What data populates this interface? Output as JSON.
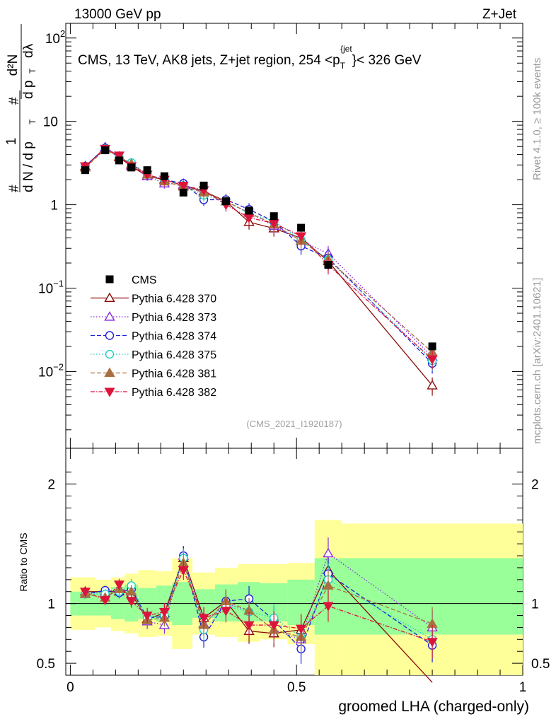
{
  "header": {
    "left": "13000 GeV pp",
    "right": "Z+Jet"
  },
  "side": {
    "rivet": "Rivet 4.1.0, ≥ 100k events",
    "mcplots": "mcplots.cern.ch [arXiv:2401.10621]"
  },
  "analysis_label": "(CMS_2021_I1920187)",
  "chart_data": [
    {
      "type": "scatter",
      "panel": "main",
      "title": "CMS, 13 TeV, AK8 jets, Z+jet region, 254 <p_T^{jet}< 326 GeV",
      "title_parts": {
        "pre": "CMS, 13 TeV, AK8 jets, Z+jet region, 254 <p",
        "sub": "T",
        "sup": "{jet",
        "post": "}< 326 GeV"
      },
      "ylabel": "1/(dN/dp_T) d²N/(dp_T dλ)",
      "ylabel_parts": {
        "hash": "#",
        "one": "1",
        "dn": "d N / d p",
        "t": "T",
        "d2n": "d²N",
        "dpdl": "d p",
        "dl": "dλ"
      },
      "xlabel": "",
      "y_scale": "log",
      "ylim": [
        0.0012,
        150
      ],
      "xlim": [
        -0.01,
        1.0
      ],
      "y_ticks": [
        {
          "v": 0.01,
          "b": "10",
          "e": "−2"
        },
        {
          "v": 0.1,
          "b": "10",
          "e": "−1"
        },
        {
          "v": 1,
          "b": "1",
          "e": ""
        },
        {
          "v": 10,
          "b": "10",
          "e": ""
        },
        {
          "v": 100,
          "b": "10",
          "e": "2"
        }
      ],
      "x": [
        0.033,
        0.077,
        0.108,
        0.135,
        0.17,
        0.208,
        0.25,
        0.295,
        0.344,
        0.395,
        0.45,
        0.51,
        0.57,
        0.8
      ],
      "data": {
        "name": "CMS",
        "values": [
          2.6,
          4.5,
          3.4,
          2.8,
          2.6,
          2.2,
          1.4,
          1.7,
          1.1,
          0.85,
          0.73,
          0.53,
          0.19,
          0.02
        ]
      },
      "series": [
        {
          "name": "Pythia 6.428 370",
          "color": "#8b0a0a",
          "marker": "tri-open",
          "dash": "",
          "values": [
            2.9,
            4.8,
            3.7,
            2.9,
            2.2,
            2.0,
            1.7,
            1.45,
            1.1,
            0.62,
            0.52,
            0.4,
            0.21,
            0.0068
          ]
        },
        {
          "name": "Pythia 6.428 373",
          "color": "#8a2be2",
          "marker": "tri-open",
          "dash": "1.5,2.5",
          "values": [
            2.8,
            4.9,
            3.8,
            3.0,
            2.2,
            1.8,
            1.75,
            1.4,
            1.1,
            0.8,
            0.56,
            0.37,
            0.26,
            0.015
          ]
        },
        {
          "name": "Pythia 6.428 374",
          "color": "#1f1fd6",
          "marker": "circle-open",
          "dash": "6,3",
          "values": [
            2.9,
            4.8,
            3.7,
            3.1,
            2.3,
            2.0,
            1.8,
            1.15,
            1.15,
            0.88,
            0.63,
            0.32,
            0.23,
            0.0125
          ]
        },
        {
          "name": "Pythia 6.428 375",
          "color": "#1fd1c0",
          "marker": "circle-open",
          "dash": "1.5,2.5",
          "values": [
            2.8,
            4.7,
            3.7,
            3.2,
            2.3,
            2.0,
            1.7,
            1.3,
            1.1,
            0.78,
            0.64,
            0.38,
            0.22,
            0.0135
          ]
        },
        {
          "name": "Pythia 6.428 381",
          "color": "#a87040",
          "marker": "tri-fill",
          "dash": "6,3",
          "values": [
            2.8,
            4.6,
            3.8,
            3.1,
            2.3,
            1.9,
            1.65,
            1.4,
            1.1,
            0.8,
            0.58,
            0.37,
            0.22,
            0.017
          ]
        },
        {
          "name": "Pythia 6.428 382",
          "color": "#dc143c",
          "marker": "tri-down",
          "dash": "6,2,1.5,2",
          "values": [
            2.9,
            4.7,
            3.9,
            2.9,
            2.3,
            2.0,
            1.7,
            1.5,
            1.0,
            0.7,
            0.6,
            0.42,
            0.19,
            0.014
          ]
        }
      ]
    },
    {
      "type": "line",
      "panel": "ratio",
      "ylabel": "Ratio to CMS",
      "xlabel": "groomed LHA (charged-only)",
      "ylim": [
        0.4,
        2.3
      ],
      "xlim": [
        -0.01,
        1.0
      ],
      "y_ticks": [
        {
          "v": 0.5,
          "label": "0.5"
        },
        {
          "v": 1,
          "label": "1"
        },
        {
          "v": 2,
          "label": "2"
        }
      ],
      "x_ticks": [
        {
          "v": 0,
          "label": "0"
        },
        {
          "v": 0.5,
          "label": "0.5"
        },
        {
          "v": 1,
          "label": "1"
        }
      ],
      "bins": [
        0.0,
        0.055,
        0.09,
        0.12,
        0.15,
        0.19,
        0.225,
        0.27,
        0.32,
        0.37,
        0.42,
        0.48,
        0.54,
        0.6,
        1.0
      ],
      "band_inner": [
        [
          0.9,
          1.1
        ],
        [
          0.9,
          1.1
        ],
        [
          0.87,
          1.14
        ],
        [
          0.85,
          1.16
        ],
        [
          0.87,
          1.13
        ],
        [
          0.85,
          1.15
        ],
        [
          0.82,
          1.18
        ],
        [
          0.88,
          1.12
        ],
        [
          0.85,
          1.16
        ],
        [
          0.85,
          1.18
        ],
        [
          0.85,
          1.17
        ],
        [
          0.82,
          1.2
        ],
        [
          0.74,
          1.38
        ],
        [
          0.74,
          1.38
        ]
      ],
      "band_outer": [
        [
          0.78,
          1.22
        ],
        [
          0.8,
          1.2
        ],
        [
          0.77,
          1.22
        ],
        [
          0.75,
          1.25
        ],
        [
          0.72,
          1.28
        ],
        [
          0.73,
          1.27
        ],
        [
          0.62,
          1.38
        ],
        [
          0.74,
          1.26
        ],
        [
          0.72,
          1.3
        ],
        [
          0.68,
          1.33
        ],
        [
          0.7,
          1.33
        ],
        [
          0.66,
          1.34
        ],
        [
          0.0,
          1.7
        ],
        [
          0.0,
          1.67
        ]
      ],
      "series_values": [
        [
          1.1,
          1.1,
          1.1,
          1.08,
          0.87,
          0.92,
          1.38,
          0.88,
          1.02,
          0.77,
          0.75,
          0.78,
          1.28,
          0.34
        ],
        [
          1.08,
          1.1,
          1.12,
          1.1,
          0.85,
          0.82,
          1.4,
          0.83,
          1.0,
          0.94,
          0.78,
          0.7,
          1.42,
          0.8
        ],
        [
          1.08,
          1.11,
          1.09,
          1.12,
          0.88,
          0.89,
          1.4,
          0.72,
          1.02,
          1.04,
          0.86,
          0.62,
          1.25,
          0.65
        ],
        [
          1.08,
          1.08,
          1.1,
          1.15,
          0.88,
          0.9,
          1.38,
          0.78,
          0.98,
          0.93,
          0.88,
          0.72,
          1.2,
          0.7
        ],
        [
          1.08,
          1.05,
          1.12,
          1.1,
          0.86,
          0.88,
          1.34,
          0.82,
          1.02,
          0.94,
          0.78,
          0.72,
          1.15,
          0.83
        ],
        [
          1.1,
          1.03,
          1.16,
          1.02,
          0.9,
          0.93,
          1.28,
          0.88,
          0.94,
          0.82,
          0.82,
          0.79,
          0.98,
          0.68
        ]
      ]
    }
  ]
}
